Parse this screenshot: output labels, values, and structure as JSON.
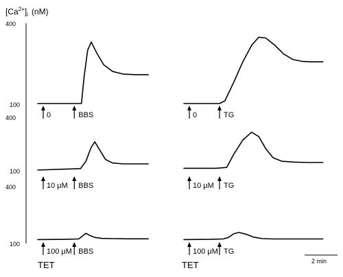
{
  "chart_data": {
    "type": "line",
    "ylabel_main": "[Ca",
    "ylabel_sup": "2+",
    "ylabel_close": "]",
    "ylabel_sub": "i",
    "ylabel_unit": "(nM)",
    "ylim": [
      100,
      400
    ],
    "ytick_labels": [
      "400",
      "100"
    ],
    "x_unit": "min",
    "scale_bar": "2 min",
    "column_labels": [
      "TET",
      "TET"
    ],
    "panels": [
      {
        "col": 0,
        "row": 0,
        "pretreatment": "0",
        "agonist": "BBS",
        "series": [
          {
            "x": [
              0,
              2.3,
              2.45,
              2.6,
              2.8,
              3.0,
              3.3,
              3.7,
              4.2,
              4.8,
              5.5,
              6.2
            ],
            "y": [
              100,
              100,
              100,
              200,
              300,
              330,
              290,
              245,
              220,
              210,
              208,
              208
            ]
          }
        ]
      },
      {
        "col": 1,
        "row": 0,
        "pretreatment": "0",
        "agonist": "TG",
        "series": [
          {
            "x": [
              0,
              2.0,
              2.3,
              2.8,
              3.3,
              3.8,
              4.2,
              4.6,
              5.1,
              5.6,
              6.1,
              6.6,
              7.1,
              7.8
            ],
            "y": [
              100,
              100,
              110,
              180,
              255,
              318,
              348,
              345,
              318,
              285,
              265,
              258,
              256,
              256
            ]
          }
        ]
      },
      {
        "col": 0,
        "row": 1,
        "pretreatment": "10 μM",
        "agonist": "BBS",
        "series": [
          {
            "x": [
              0,
              1.5,
              2.4,
              2.7,
              3.0,
              3.2,
              3.5,
              3.8,
              4.2,
              4.8,
              5.5,
              6.2
            ],
            "y": [
              100,
              105,
              108,
              150,
              230,
              260,
              210,
              160,
              140,
              135,
              135,
              135
            ]
          }
        ]
      },
      {
        "col": 1,
        "row": 1,
        "pretreatment": "10 μM",
        "agonist": "TG",
        "series": [
          {
            "x": [
              0,
              1.8,
              2.4,
              2.8,
              3.3,
              3.8,
              4.2,
              4.6,
              5.0,
              5.5,
              6.2,
              7.0,
              7.8
            ],
            "y": [
              110,
              110,
              115,
              190,
              270,
              315,
              290,
              220,
              170,
              150,
              145,
              143,
              143
            ]
          }
        ]
      },
      {
        "col": 0,
        "row": 2,
        "pretreatment": "100 μM",
        "agonist": "BBS",
        "series": [
          {
            "x": [
              0,
              1.5,
              2.3,
              2.5,
              2.7,
              2.9,
              3.2,
              3.6,
              4.2,
              5.0,
              6.2
            ],
            "y": [
              117,
              118,
              120,
              135,
              150,
              140,
              128,
              123,
              122,
              121,
              121
            ]
          }
        ]
      },
      {
        "col": 1,
        "row": 2,
        "pretreatment": "100 μM",
        "agonist": "TG",
        "series": [
          {
            "x": [
              0,
              1.5,
              2.2,
              2.5,
              2.8,
              3.1,
              3.5,
              3.9,
              4.4,
              5.0,
              6.0,
              7.0,
              7.8
            ],
            "y": [
              117,
              118,
              120,
              128,
              148,
              155,
              145,
              130,
              122,
              120,
              120,
              120,
              120
            ]
          }
        ]
      }
    ]
  }
}
